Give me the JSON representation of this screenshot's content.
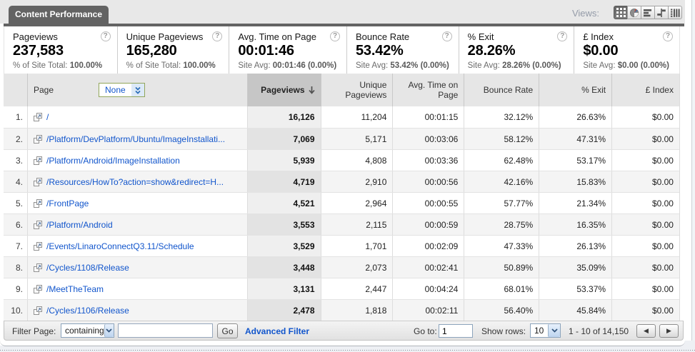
{
  "tab": {
    "label": "Content Performance"
  },
  "views": {
    "label": "Views:",
    "buttons": [
      {
        "name": "table-view",
        "selected": true
      },
      {
        "name": "percentage-view",
        "selected": false
      },
      {
        "name": "performance-view",
        "selected": false
      },
      {
        "name": "comparison-view",
        "selected": false
      },
      {
        "name": "pivot-view",
        "selected": false
      }
    ]
  },
  "scoreboard": {
    "help_glyph": "?",
    "cards": [
      {
        "title": "Pageviews",
        "value": "237,583",
        "sub_prefix": "% of Site Total:",
        "sub_value": "100.00%"
      },
      {
        "title": "Unique Pageviews",
        "value": "165,280",
        "sub_prefix": "% of Site Total:",
        "sub_value": "100.00%"
      },
      {
        "title": "Avg. Time on Page",
        "value": "00:01:46",
        "sub_prefix": "Site Avg:",
        "sub_value": "00:01:46 (0.00%)"
      },
      {
        "title": "Bounce Rate",
        "value": "53.42%",
        "sub_prefix": "Site Avg:",
        "sub_value": "53.42% (0.00%)"
      },
      {
        "title": "% Exit",
        "value": "28.26%",
        "sub_prefix": "Site Avg:",
        "sub_value": "28.26% (0.00%)"
      },
      {
        "title": "£ Index",
        "value": "$0.00",
        "sub_prefix": "Site Avg:",
        "sub_value": "$0.00 (0.00%)"
      }
    ]
  },
  "table": {
    "sort_arrow": "↓",
    "columns": [
      {
        "key": "num",
        "label": "",
        "align": "right"
      },
      {
        "key": "page",
        "label": "Page",
        "align": "left",
        "secondary_dimension": "None"
      },
      {
        "key": "pageviews",
        "label": "Pageviews",
        "align": "right",
        "sorted": "desc"
      },
      {
        "key": "unique_pageviews",
        "label": "Unique Pageviews",
        "label_lines": [
          "Unique",
          "Pageviews"
        ],
        "align": "right"
      },
      {
        "key": "avg_time",
        "label": "Avg. Time on Page",
        "label_lines": [
          "Avg. Time on",
          "Page"
        ],
        "align": "right"
      },
      {
        "key": "bounce",
        "label": "Bounce Rate",
        "align": "right"
      },
      {
        "key": "exit",
        "label": "% Exit",
        "align": "right"
      },
      {
        "key": "index",
        "label": "£ Index",
        "align": "right"
      }
    ],
    "rows": [
      {
        "num": "1.",
        "page": "/",
        "pageviews": "16,126",
        "unique_pageviews": "11,204",
        "avg_time": "00:01:15",
        "bounce": "32.12%",
        "exit": "26.63%",
        "index": "$0.00"
      },
      {
        "num": "2.",
        "page": "/Platform/DevPlatform/Ubuntu/ImageInstallati...",
        "pageviews": "7,069",
        "unique_pageviews": "5,171",
        "avg_time": "00:03:06",
        "bounce": "58.12%",
        "exit": "47.31%",
        "index": "$0.00"
      },
      {
        "num": "3.",
        "page": "/Platform/Android/ImageInstallation",
        "pageviews": "5,939",
        "unique_pageviews": "4,808",
        "avg_time": "00:03:36",
        "bounce": "62.48%",
        "exit": "53.17%",
        "index": "$0.00"
      },
      {
        "num": "4.",
        "page": "/Resources/HowTo?action=show&redirect=H...",
        "pageviews": "4,719",
        "unique_pageviews": "2,910",
        "avg_time": "00:00:56",
        "bounce": "42.16%",
        "exit": "15.83%",
        "index": "$0.00"
      },
      {
        "num": "5.",
        "page": "/FrontPage",
        "pageviews": "4,521",
        "unique_pageviews": "2,964",
        "avg_time": "00:00:55",
        "bounce": "57.77%",
        "exit": "21.34%",
        "index": "$0.00"
      },
      {
        "num": "6.",
        "page": "/Platform/Android",
        "pageviews": "3,553",
        "unique_pageviews": "2,115",
        "avg_time": "00:00:59",
        "bounce": "28.75%",
        "exit": "16.35%",
        "index": "$0.00"
      },
      {
        "num": "7.",
        "page": "/Events/LinaroConnectQ3.11/Schedule",
        "pageviews": "3,529",
        "unique_pageviews": "1,701",
        "avg_time": "00:02:09",
        "bounce": "47.33%",
        "exit": "26.13%",
        "index": "$0.00"
      },
      {
        "num": "8.",
        "page": "/Cycles/1108/Release",
        "pageviews": "3,448",
        "unique_pageviews": "2,073",
        "avg_time": "00:02:41",
        "bounce": "50.89%",
        "exit": "35.09%",
        "index": "$0.00"
      },
      {
        "num": "9.",
        "page": "/MeetTheTeam",
        "pageviews": "3,131",
        "unique_pageviews": "2,447",
        "avg_time": "00:04:24",
        "bounce": "68.01%",
        "exit": "53.37%",
        "index": "$0.00"
      },
      {
        "num": "10.",
        "page": "/Cycles/1106/Release",
        "pageviews": "2,478",
        "unique_pageviews": "1,818",
        "avg_time": "00:02:11",
        "bounce": "56.40%",
        "exit": "45.84%",
        "index": "$0.00"
      }
    ]
  },
  "footer": {
    "filter_label": "Filter Page:",
    "filter_match_value": "containing",
    "filter_input_value": "",
    "go_button": "Go",
    "advanced_filter": "Advanced Filter",
    "goto_label": "Go to:",
    "goto_value": "1",
    "show_rows_label": "Show rows:",
    "show_rows_value": "10",
    "range_text": "1 - 10 of 14,150"
  }
}
